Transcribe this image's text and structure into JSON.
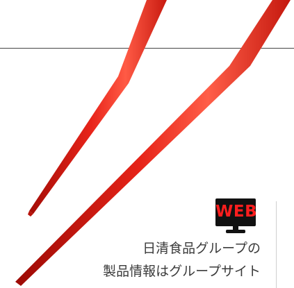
{
  "web_badge": {
    "icon": "monitor-web-icon",
    "label": "WEB",
    "label_color": "#ff1e1e",
    "screen_color": "#111111"
  },
  "caption": {
    "line1": "日清食品グループの",
    "line2": "製品情報はグループサイト"
  },
  "colors": {
    "chopstick": "#e8241a",
    "divider": "#444444"
  }
}
